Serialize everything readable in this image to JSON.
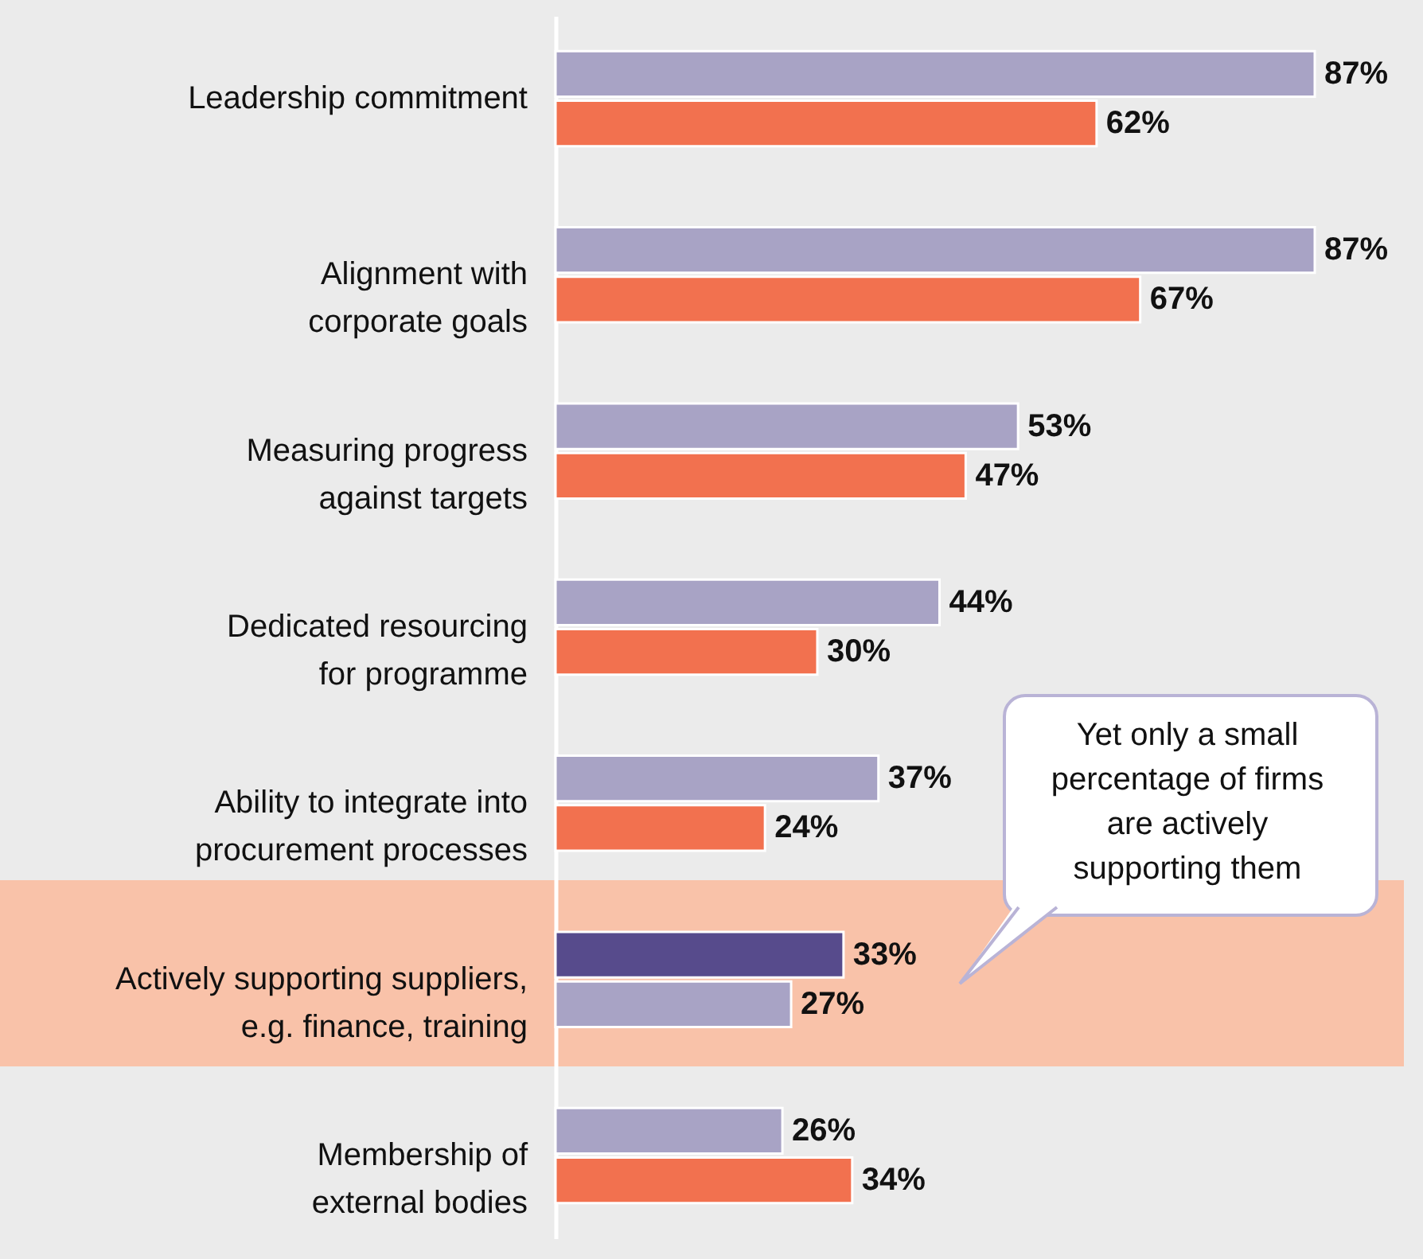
{
  "chart_data": {
    "type": "bar",
    "orientation": "horizontal",
    "categories": [
      "Leadership commitment",
      "Alignment with corporate goals",
      "Measuring progress against targets",
      "Dedicated resourcing for programme",
      "Ability to integrate into procurement processes",
      "Actively supporting suppliers, e.g. finance, training",
      "Membership of external bodies"
    ],
    "series": [
      {
        "colors": [
          "#a8a3c5",
          "#a8a3c5",
          "#a8a3c5",
          "#a8a3c5",
          "#a8a3c5",
          "#574b8c",
          "#a8a3c5"
        ],
        "values": [
          87,
          87,
          53,
          44,
          37,
          33,
          26
        ],
        "value_labels": [
          "87%",
          "87%",
          "53%",
          "44%",
          "37%",
          "33%",
          "26%"
        ]
      },
      {
        "colors": [
          "#f2714f",
          "#f2714f",
          "#f2714f",
          "#f2714f",
          "#f2714f",
          "#a8a3c5",
          "#f2714f"
        ],
        "values": [
          62,
          67,
          47,
          30,
          24,
          27,
          34
        ],
        "value_labels": [
          "62%",
          "67%",
          "47%",
          "30%",
          "24%",
          "27%",
          "34%"
        ]
      }
    ],
    "annotations": [
      "Yet only a small percentage of firms are actively supporting them"
    ]
  }
}
